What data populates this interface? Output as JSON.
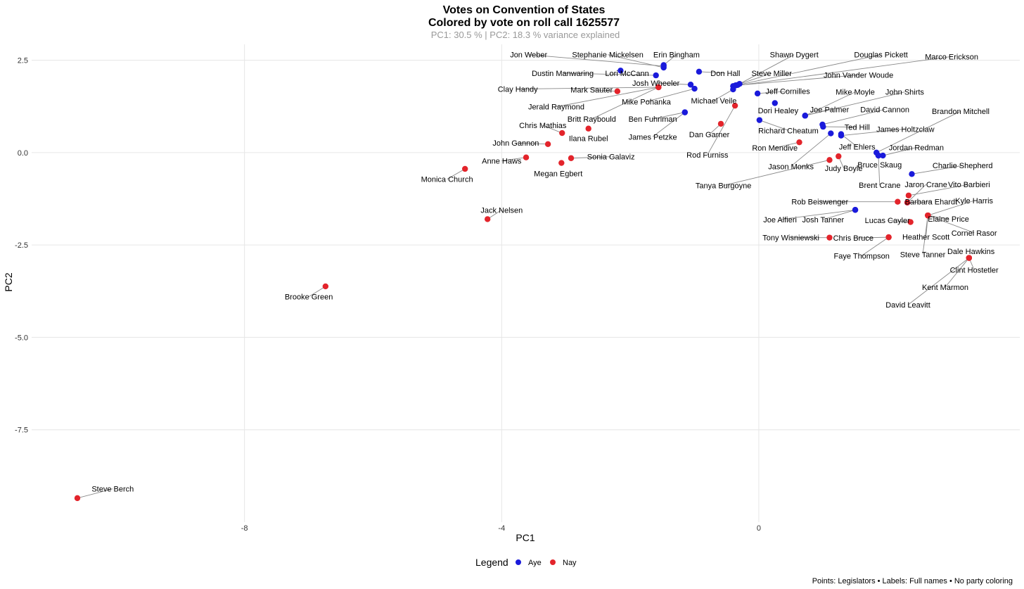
{
  "chart_data": {
    "type": "scatter",
    "title": "Votes on Convention of States",
    "subtitle_line": "Colored by vote on roll call 1625577",
    "variance_note": "PC1: 30.5 % | PC2: 18.3 % variance explained",
    "xlabel": "PC1",
    "ylabel": "PC2",
    "xlim": [
      -10.6,
      3.95
    ],
    "ylim": [
      -10.0,
      2.93
    ],
    "x_ticks": [
      -8,
      -4,
      0
    ],
    "x_tick_labels": [
      "-8",
      "-4",
      "0"
    ],
    "y_ticks": [
      2.5,
      0.0,
      -2.5,
      -5.0,
      -7.5
    ],
    "y_tick_labels": [
      "2.5",
      "0.0",
      "-2.5",
      "-5.0",
      "-7.5"
    ],
    "grid": true,
    "legend": {
      "title": "Legend",
      "position": "bottom",
      "items": [
        {
          "name": "Aye",
          "color": "#1a1adb"
        },
        {
          "name": "Nay",
          "color": "#e3242b"
        }
      ]
    },
    "caption": "Points: Legislators • Labels: Full names • No party coloring",
    "points": [
      {
        "name": "Jon Weber",
        "x": -1.48,
        "y": 2.34,
        "vote": "Aye",
        "lx": -3.58,
        "ly": 2.65
      },
      {
        "name": "Stephanie Mickelsen",
        "x": -1.48,
        "y": 2.3,
        "vote": "Aye",
        "lx": -2.35,
        "ly": 2.65
      },
      {
        "name": "Erin Bingham",
        "x": -1.48,
        "y": 2.37,
        "vote": "Aye",
        "lx": -1.28,
        "ly": 2.65
      },
      {
        "name": "Lori McCann",
        "x": -2.15,
        "y": 2.22,
        "vote": "Aye",
        "lx": -2.05,
        "ly": 2.15
      },
      {
        "name": "Dustin Manwaring",
        "x": -1.6,
        "y": 2.09,
        "vote": "Aye",
        "lx": -3.05,
        "ly": 2.15
      },
      {
        "name": "Josh Wheeler",
        "x": -1.06,
        "y": 1.84,
        "vote": "Aye",
        "lx": -1.6,
        "ly": 1.88
      },
      {
        "name": "Mike Pohanka",
        "x": -1.0,
        "y": 1.73,
        "vote": "Aye",
        "lx": -1.75,
        "ly": 1.38
      },
      {
        "name": "Ben Fuhriman",
        "x": -1.15,
        "y": 1.09,
        "vote": "Aye",
        "lx": -1.65,
        "ly": 0.91
      },
      {
        "name": "James Petzke",
        "x": -1.15,
        "y": 1.09,
        "vote": "Aye",
        "lx": -1.65,
        "ly": 0.43
      },
      {
        "name": "Don Hall",
        "x": -0.93,
        "y": 2.19,
        "vote": "Aye",
        "lx": -0.52,
        "ly": 2.15
      },
      {
        "name": "Shawn Dygert",
        "x": -0.3,
        "y": 1.86,
        "vote": "Aye",
        "lx": 0.55,
        "ly": 2.65
      },
      {
        "name": "Douglas Pickett",
        "x": -0.33,
        "y": 1.83,
        "vote": "Aye",
        "lx": 1.9,
        "ly": 2.65
      },
      {
        "name": "Marco Erickson",
        "x": -0.4,
        "y": 1.8,
        "vote": "Aye",
        "lx": 3.0,
        "ly": 2.6
      },
      {
        "name": "Steve Miller",
        "x": -0.36,
        "y": 1.82,
        "vote": "Aye",
        "lx": 0.2,
        "ly": 2.15
      },
      {
        "name": "Michael Veile",
        "x": -0.4,
        "y": 1.71,
        "vote": "Aye",
        "lx": -0.7,
        "ly": 1.41
      },
      {
        "name": "John Vander Woude",
        "x": -0.36,
        "y": 1.82,
        "vote": "Aye",
        "lx": 1.55,
        "ly": 2.1
      },
      {
        "name": "Jeff Cornilles",
        "x": -0.02,
        "y": 1.6,
        "vote": "Aye",
        "lx": 0.45,
        "ly": 1.66
      },
      {
        "name": "Dori Healey",
        "x": 0.25,
        "y": 1.34,
        "vote": "Aye",
        "lx": 0.3,
        "ly": 1.14
      },
      {
        "name": "Mike Moyle",
        "x": 0.72,
        "y": 1.0,
        "vote": "Aye",
        "lx": 1.5,
        "ly": 1.64
      },
      {
        "name": "John Shirts",
        "x": 0.72,
        "y": 1.0,
        "vote": "Aye",
        "lx": 2.27,
        "ly": 1.64
      },
      {
        "name": "Joe Palmer",
        "x": 0.72,
        "y": 1.0,
        "vote": "Aye",
        "lx": 1.1,
        "ly": 1.17
      },
      {
        "name": "David Cannon",
        "x": 0.99,
        "y": 0.76,
        "vote": "Aye",
        "lx": 1.96,
        "ly": 1.17
      },
      {
        "name": "Richard Cheatum",
        "x": 0.01,
        "y": 0.88,
        "vote": "Aye",
        "lx": 0.46,
        "ly": 0.6
      },
      {
        "name": "Brandon Mitchell",
        "x": 1.83,
        "y": 0.0,
        "vote": "Aye",
        "lx": 3.14,
        "ly": 1.12
      },
      {
        "name": "Ted Hill",
        "x": 1.0,
        "y": 0.7,
        "vote": "Aye",
        "lx": 1.53,
        "ly": 0.69
      },
      {
        "name": "James Holtzclaw",
        "x": 1.28,
        "y": 0.46,
        "vote": "Aye",
        "lx": 2.28,
        "ly": 0.64
      },
      {
        "name": "Jeff Ehlers",
        "x": 1.28,
        "y": 0.5,
        "vote": "Aye",
        "lx": 1.53,
        "ly": 0.16
      },
      {
        "name": "Jordan Redman",
        "x": 1.93,
        "y": -0.08,
        "vote": "Aye",
        "lx": 2.45,
        "ly": 0.14
      },
      {
        "name": "Jason Monks",
        "x": 1.12,
        "y": 0.52,
        "vote": "Aye",
        "lx": 0.5,
        "ly": -0.37
      },
      {
        "name": "Bruce Skaug",
        "x": 1.86,
        "y": -0.08,
        "vote": "Aye",
        "lx": 1.88,
        "ly": -0.33
      },
      {
        "name": "Charlie Shepherd",
        "x": 2.38,
        "y": -0.58,
        "vote": "Aye",
        "lx": 3.17,
        "ly": -0.35
      },
      {
        "name": "Brent Crane",
        "x": 1.86,
        "y": -0.08,
        "vote": "Aye",
        "lx": 1.88,
        "ly": -0.88
      },
      {
        "name": "Jaron Crane",
        "x": 2.31,
        "y": -1.35,
        "vote": "Aye",
        "lx": 2.6,
        "ly": -0.86
      },
      {
        "name": "Joe Alfieri",
        "x": 1.5,
        "y": -1.55,
        "vote": "Aye",
        "lx": 0.33,
        "ly": -1.81
      },
      {
        "name": "Josh Tanner",
        "x": 1.5,
        "y": -1.55,
        "vote": "Aye",
        "lx": 1.0,
        "ly": -1.81
      },
      {
        "name": "Clay Handy",
        "x": -1.56,
        "y": 1.77,
        "vote": "Nay",
        "lx": -3.75,
        "ly": 1.72
      },
      {
        "name": "Mark Sauter",
        "x": -2.2,
        "y": 1.66,
        "vote": "Nay",
        "lx": -2.6,
        "ly": 1.7
      },
      {
        "name": "Jerald Raymond",
        "x": -1.56,
        "y": 1.77,
        "vote": "Nay",
        "lx": -3.15,
        "ly": 1.24
      },
      {
        "name": "Britt Raybould",
        "x": -1.56,
        "y": 1.77,
        "vote": "Nay",
        "lx": -2.6,
        "ly": 0.91
      },
      {
        "name": "Chris Mathias",
        "x": -3.06,
        "y": 0.53,
        "vote": "Nay",
        "lx": -3.36,
        "ly": 0.74
      },
      {
        "name": "Ilana Rubel",
        "x": -2.65,
        "y": 0.65,
        "vote": "Nay",
        "lx": -2.65,
        "ly": 0.39
      },
      {
        "name": "John Gannon",
        "x": -3.28,
        "y": 0.23,
        "vote": "Nay",
        "lx": -3.78,
        "ly": 0.26
      },
      {
        "name": "Sonia Galaviz",
        "x": -2.92,
        "y": -0.15,
        "vote": "Nay",
        "lx": -2.3,
        "ly": -0.11
      },
      {
        "name": "Anne Haws",
        "x": -3.62,
        "y": -0.13,
        "vote": "Nay",
        "lx": -4.0,
        "ly": -0.22
      },
      {
        "name": "Megan Egbert",
        "x": -3.07,
        "y": -0.28,
        "vote": "Nay",
        "lx": -3.12,
        "ly": -0.56
      },
      {
        "name": "Monica Church",
        "x": -4.57,
        "y": -0.44,
        "vote": "Nay",
        "lx": -4.85,
        "ly": -0.72
      },
      {
        "name": "Jack Nelsen",
        "x": -4.22,
        "y": -1.8,
        "vote": "Nay",
        "lx": -4.0,
        "ly": -1.55
      },
      {
        "name": "Brooke Green",
        "x": -6.74,
        "y": -3.62,
        "vote": "Nay",
        "lx": -7.0,
        "ly": -3.9
      },
      {
        "name": "Steve Berch",
        "x": -10.6,
        "y": -9.35,
        "vote": "Nay",
        "lx": -10.05,
        "ly": -9.1
      },
      {
        "name": "Dan Garner",
        "x": -0.59,
        "y": 0.78,
        "vote": "Nay",
        "lx": -0.77,
        "ly": 0.49
      },
      {
        "name": "Rod Furniss",
        "x": -0.37,
        "y": 1.27,
        "vote": "Nay",
        "lx": -0.8,
        "ly": -0.06
      },
      {
        "name": "Ron Mendive",
        "x": 0.63,
        "y": 0.28,
        "vote": "Nay",
        "lx": 0.25,
        "ly": 0.13
      },
      {
        "name": "Judy Boyle",
        "x": 1.24,
        "y": -0.1,
        "vote": "Nay",
        "lx": 1.32,
        "ly": -0.42
      },
      {
        "name": "Tanya Burgoyne",
        "x": 1.1,
        "y": -0.2,
        "vote": "Nay",
        "lx": -0.55,
        "ly": -0.89
      },
      {
        "name": "Vito Barbieri",
        "x": 2.33,
        "y": -1.16,
        "vote": "Nay",
        "lx": 3.27,
        "ly": -0.86
      },
      {
        "name": "Rob Beiswenger",
        "x": 2.16,
        "y": -1.33,
        "vote": "Nay",
        "lx": 0.95,
        "ly": -1.33
      },
      {
        "name": "Barbara Ehardt",
        "x": 2.31,
        "y": -1.35,
        "vote": "Nay",
        "lx": 2.68,
        "ly": -1.33
      },
      {
        "name": "Kyle Harris",
        "x": 2.63,
        "y": -1.7,
        "vote": "Nay",
        "lx": 3.35,
        "ly": -1.3
      },
      {
        "name": "Lucas Cayler",
        "x": 2.36,
        "y": -1.88,
        "vote": "Nay",
        "lx": 2.0,
        "ly": -1.83
      },
      {
        "name": "Elaine Price",
        "x": 2.63,
        "y": -1.7,
        "vote": "Nay",
        "lx": 2.95,
        "ly": -1.79
      },
      {
        "name": "Cornel Rasor",
        "x": 2.63,
        "y": -1.7,
        "vote": "Nay",
        "lx": 3.35,
        "ly": -2.17
      },
      {
        "name": "Tony Wisniewski",
        "x": 1.1,
        "y": -2.3,
        "vote": "Nay",
        "lx": 0.5,
        "ly": -2.3
      },
      {
        "name": "Chris Bruce",
        "x": 2.02,
        "y": -2.29,
        "vote": "Nay",
        "lx": 1.47,
        "ly": -2.31
      },
      {
        "name": "Heather Scott",
        "x": 2.63,
        "y": -1.7,
        "vote": "Nay",
        "lx": 2.6,
        "ly": -2.28
      },
      {
        "name": "Faye Thompson",
        "x": 2.02,
        "y": -2.29,
        "vote": "Nay",
        "lx": 1.6,
        "ly": -2.79
      },
      {
        "name": "Steve Tanner",
        "x": 2.63,
        "y": -1.7,
        "vote": "Nay",
        "lx": 2.55,
        "ly": -2.75
      },
      {
        "name": "Dale Hawkins",
        "x": 3.27,
        "y": -2.85,
        "vote": "Nay",
        "lx": 3.3,
        "ly": -2.67
      },
      {
        "name": "Clint Hostetler",
        "x": 3.27,
        "y": -2.85,
        "vote": "Nay",
        "lx": 3.35,
        "ly": -3.17
      },
      {
        "name": "Kent Marmon",
        "x": 3.27,
        "y": -2.85,
        "vote": "Nay",
        "lx": 2.9,
        "ly": -3.64
      },
      {
        "name": "David Leavitt",
        "x": 3.27,
        "y": -2.85,
        "vote": "Nay",
        "lx": 2.32,
        "ly": -4.12
      }
    ]
  }
}
